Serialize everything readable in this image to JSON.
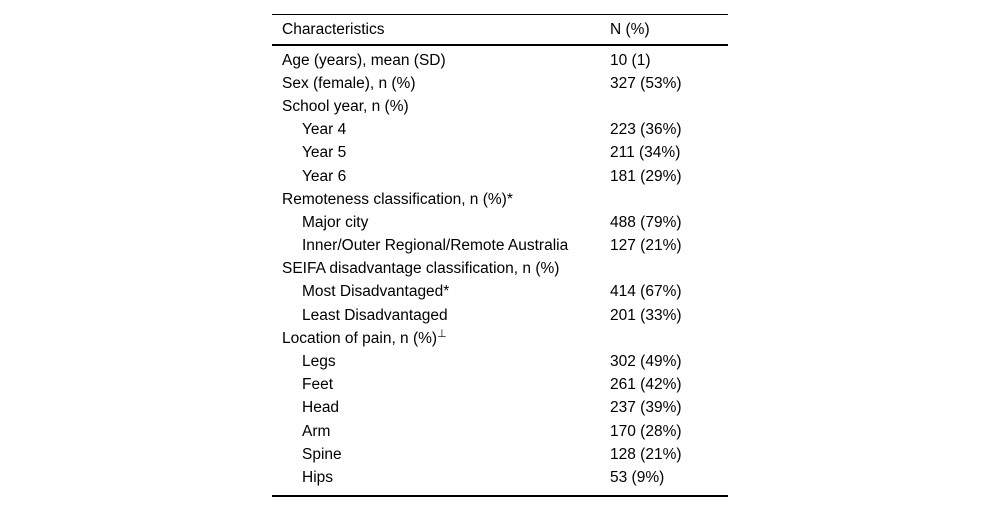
{
  "table": {
    "columns": {
      "characteristics": "Characteristics",
      "n_percent": "N (%)"
    },
    "rows": [
      {
        "label": "Age (years), mean (SD)",
        "value": "10 (1)",
        "indent": false
      },
      {
        "label": "Sex (female), n (%)",
        "value": "327 (53%)",
        "indent": false
      },
      {
        "label": "School year, n (%)",
        "value": "",
        "indent": false
      },
      {
        "label": "Year 4",
        "value": "223 (36%)",
        "indent": true
      },
      {
        "label": "Year 5",
        "value": "211 (34%)",
        "indent": true
      },
      {
        "label": "Year 6",
        "value": "181 (29%)",
        "indent": true
      },
      {
        "label": "Remoteness classification, n (%)*",
        "value": "",
        "indent": false
      },
      {
        "label": "Major city",
        "value": "488 (79%)",
        "indent": true
      },
      {
        "label": "Inner/Outer Regional/Remote Australia",
        "value": "127 (21%)",
        "indent": true
      },
      {
        "label": "SEIFA disadvantage classification, n (%)",
        "value": "",
        "indent": false
      },
      {
        "label": "Most Disadvantaged*",
        "value": "414 (67%)",
        "indent": true
      },
      {
        "label": "Least Disadvantaged",
        "value": "201 (33%)",
        "indent": true
      },
      {
        "label": "Location of pain, n (%)",
        "sup": "⊥",
        "value": "",
        "indent": false
      },
      {
        "label": "Legs",
        "value": "302 (49%)",
        "indent": true
      },
      {
        "label": "Feet",
        "value": "261 (42%)",
        "indent": true
      },
      {
        "label": "Head",
        "value": "237 (39%)",
        "indent": true
      },
      {
        "label": "Arm",
        "value": "170 (28%)",
        "indent": true
      },
      {
        "label": "Spine",
        "value": "128 (21%)",
        "indent": true
      },
      {
        "label": "Hips",
        "value": "53 (9%)",
        "indent": true
      }
    ],
    "colors": {
      "text": "#000000",
      "rule": "#000000",
      "background": "#ffffff"
    }
  }
}
